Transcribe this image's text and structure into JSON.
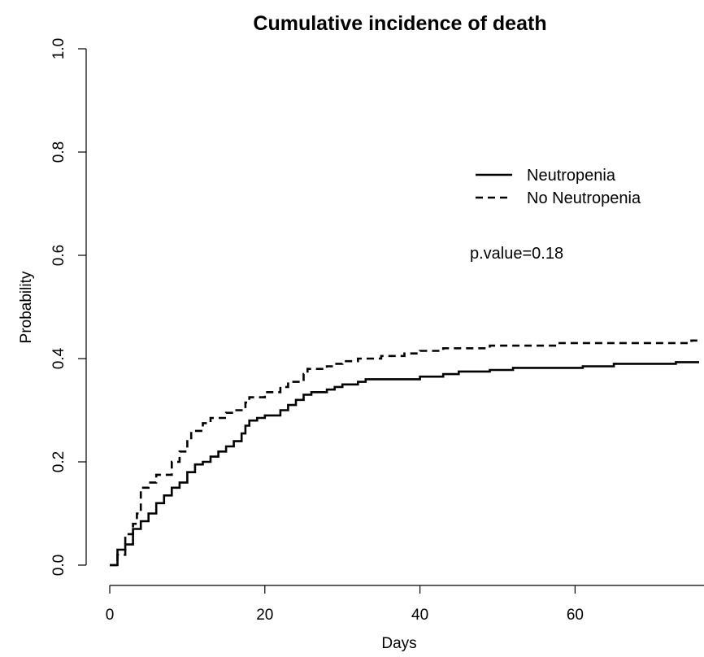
{
  "chart_data": {
    "type": "line",
    "title": "Cumulative incidence of death",
    "xlabel": "Days",
    "ylabel": "Probability",
    "xlim": [
      -4,
      76
    ],
    "ylim": [
      -0.04,
      1.04
    ],
    "xticks": [
      "0",
      "20",
      "40",
      "60"
    ],
    "yticks": [
      "0.0",
      "0.2",
      "0.4",
      "0.6",
      "0.8",
      "1.0"
    ],
    "grid": false,
    "legend_position": "top-right",
    "annotation": "p.value=0.18",
    "series": [
      {
        "name": "Neutropenia",
        "line_style": "solid",
        "color": "#000000",
        "step_points": [
          [
            0,
            0.0
          ],
          [
            1,
            0.0
          ],
          [
            1,
            0.03
          ],
          [
            2,
            0.03
          ],
          [
            2,
            0.04
          ],
          [
            3,
            0.04
          ],
          [
            3,
            0.07
          ],
          [
            4,
            0.07
          ],
          [
            4,
            0.085
          ],
          [
            5,
            0.085
          ],
          [
            5,
            0.1
          ],
          [
            6,
            0.1
          ],
          [
            6,
            0.12
          ],
          [
            7,
            0.12
          ],
          [
            7,
            0.135
          ],
          [
            8,
            0.135
          ],
          [
            8,
            0.15
          ],
          [
            9,
            0.15
          ],
          [
            9,
            0.16
          ],
          [
            10,
            0.16
          ],
          [
            10,
            0.18
          ],
          [
            11,
            0.18
          ],
          [
            11,
            0.195
          ],
          [
            12,
            0.195
          ],
          [
            12,
            0.2
          ],
          [
            13,
            0.2
          ],
          [
            13,
            0.21
          ],
          [
            14,
            0.21
          ],
          [
            14,
            0.22
          ],
          [
            15,
            0.22
          ],
          [
            15,
            0.23
          ],
          [
            16,
            0.23
          ],
          [
            16,
            0.24
          ],
          [
            17,
            0.24
          ],
          [
            17,
            0.255
          ],
          [
            17.5,
            0.255
          ],
          [
            17.5,
            0.27
          ],
          [
            18,
            0.27
          ],
          [
            18,
            0.28
          ],
          [
            19,
            0.28
          ],
          [
            19,
            0.285
          ],
          [
            20,
            0.285
          ],
          [
            20,
            0.29
          ],
          [
            22,
            0.29
          ],
          [
            22,
            0.3
          ],
          [
            23,
            0.3
          ],
          [
            23,
            0.31
          ],
          [
            24,
            0.31
          ],
          [
            24,
            0.32
          ],
          [
            25,
            0.32
          ],
          [
            25,
            0.33
          ],
          [
            26,
            0.33
          ],
          [
            26,
            0.335
          ],
          [
            28,
            0.335
          ],
          [
            28,
            0.34
          ],
          [
            29,
            0.34
          ],
          [
            29,
            0.345
          ],
          [
            30,
            0.345
          ],
          [
            30,
            0.35
          ],
          [
            32,
            0.35
          ],
          [
            32,
            0.355
          ],
          [
            33,
            0.355
          ],
          [
            33,
            0.36
          ],
          [
            40,
            0.36
          ],
          [
            40,
            0.365
          ],
          [
            43,
            0.365
          ],
          [
            43,
            0.37
          ],
          [
            45,
            0.37
          ],
          [
            45,
            0.375
          ],
          [
            49,
            0.375
          ],
          [
            49,
            0.378
          ],
          [
            52,
            0.378
          ],
          [
            52,
            0.382
          ],
          [
            61,
            0.382
          ],
          [
            61,
            0.385
          ],
          [
            65,
            0.385
          ],
          [
            65,
            0.39
          ],
          [
            73,
            0.39
          ],
          [
            73,
            0.393
          ],
          [
            76,
            0.393
          ]
        ]
      },
      {
        "name": "No Neutropenia",
        "line_style": "dashed",
        "color": "#000000",
        "step_points": [
          [
            0,
            0.0
          ],
          [
            1,
            0.0
          ],
          [
            1,
            0.02
          ],
          [
            2,
            0.02
          ],
          [
            2,
            0.06
          ],
          [
            3,
            0.06
          ],
          [
            3,
            0.08
          ],
          [
            3.5,
            0.08
          ],
          [
            3.5,
            0.1
          ],
          [
            4,
            0.1
          ],
          [
            4,
            0.15
          ],
          [
            5,
            0.15
          ],
          [
            5,
            0.16
          ],
          [
            6,
            0.16
          ],
          [
            6,
            0.175
          ],
          [
            8,
            0.175
          ],
          [
            8,
            0.2
          ],
          [
            9,
            0.2
          ],
          [
            9,
            0.22
          ],
          [
            10,
            0.22
          ],
          [
            10,
            0.24
          ],
          [
            10.5,
            0.24
          ],
          [
            10.5,
            0.26
          ],
          [
            12,
            0.26
          ],
          [
            12,
            0.275
          ],
          [
            13,
            0.275
          ],
          [
            13,
            0.285
          ],
          [
            15,
            0.285
          ],
          [
            15,
            0.295
          ],
          [
            16,
            0.295
          ],
          [
            16,
            0.3
          ],
          [
            17.5,
            0.3
          ],
          [
            17.5,
            0.315
          ],
          [
            18,
            0.315
          ],
          [
            18,
            0.325
          ],
          [
            20,
            0.325
          ],
          [
            20,
            0.335
          ],
          [
            22,
            0.335
          ],
          [
            22,
            0.345
          ],
          [
            23,
            0.345
          ],
          [
            23,
            0.355
          ],
          [
            25,
            0.355
          ],
          [
            25,
            0.37
          ],
          [
            25.5,
            0.37
          ],
          [
            25.5,
            0.38
          ],
          [
            28,
            0.38
          ],
          [
            28,
            0.385
          ],
          [
            29,
            0.385
          ],
          [
            29,
            0.39
          ],
          [
            30,
            0.39
          ],
          [
            30,
            0.395
          ],
          [
            32,
            0.395
          ],
          [
            32,
            0.4
          ],
          [
            35,
            0.4
          ],
          [
            35,
            0.405
          ],
          [
            38,
            0.405
          ],
          [
            38,
            0.41
          ],
          [
            40,
            0.41
          ],
          [
            40,
            0.415
          ],
          [
            43,
            0.415
          ],
          [
            43,
            0.42
          ],
          [
            49,
            0.42
          ],
          [
            49,
            0.425
          ],
          [
            58,
            0.425
          ],
          [
            58,
            0.43
          ],
          [
            75,
            0.43
          ],
          [
            75,
            0.435
          ],
          [
            76,
            0.435
          ]
        ]
      }
    ]
  }
}
